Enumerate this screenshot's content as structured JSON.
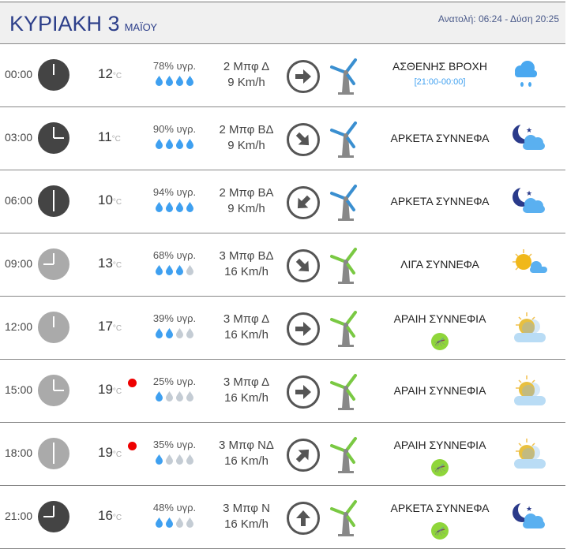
{
  "header": {
    "day": "ΚΥΡΙΑΚΗ 3",
    "month": "ΜΑΪΟΥ",
    "sun": "Ανατολή: 06:24  - Δύση 20:25"
  },
  "colors": {
    "night_clock": "#444444",
    "day_clock": "#aaaaaa",
    "drop_on": "#3fa0f0",
    "drop_off": "#c4ccd4",
    "turbine_weak": "#3a8fd0",
    "turbine_med": "#7ac943",
    "alert": "#ee0000"
  },
  "rows": [
    {
      "time": "00:00",
      "hour": 0,
      "night": true,
      "temp": "12",
      "unit": "°C",
      "alert": false,
      "humidity": "78% υγρ.",
      "drops": 4,
      "beaufort": "2 Μπφ Δ",
      "speed": "9 Km/h",
      "arrow_deg": 90,
      "desc": "ΑΣΘΕΝΗΣ ΒΡΟΧΗ",
      "range": "[21:00-00:00]",
      "mosquito": false,
      "icon": "rain-cloud-icon"
    },
    {
      "time": "03:00",
      "hour": 3,
      "night": true,
      "temp": "11",
      "unit": "°C",
      "alert": false,
      "humidity": "90% υγρ.",
      "drops": 4,
      "beaufort": "2 Μπφ ΒΔ",
      "speed": "9 Km/h",
      "arrow_deg": 135,
      "desc": "ΑΡΚΕΤΑ ΣΥΝΝΕΦΑ",
      "mosquito": false,
      "icon": "moon-cloud-icon"
    },
    {
      "time": "06:00",
      "hour": 6,
      "night": true,
      "temp": "10",
      "unit": "°C",
      "alert": false,
      "humidity": "94% υγρ.",
      "drops": 4,
      "beaufort": "2 Μπφ ΒΑ",
      "speed": "9 Km/h",
      "arrow_deg": 225,
      "desc": "ΑΡΚΕΤΑ ΣΥΝΝΕΦΑ",
      "mosquito": false,
      "icon": "moon-cloud-icon"
    },
    {
      "time": "09:00",
      "hour": 9,
      "night": false,
      "temp": "13",
      "unit": "°C",
      "alert": false,
      "humidity": "68% υγρ.",
      "drops": 3,
      "beaufort": "3 Μπφ ΒΔ",
      "speed": "16 Km/h",
      "arrow_deg": 135,
      "desc": "ΛΙΓΑ ΣΥΝΝΕΦΑ",
      "mosquito": false,
      "icon": "sun-cloud-icon"
    },
    {
      "time": "12:00",
      "hour": 0,
      "night": false,
      "temp": "17",
      "unit": "°C",
      "alert": false,
      "humidity": "39% υγρ.",
      "drops": 2,
      "beaufort": "3 Μπφ Δ",
      "speed": "16 Km/h",
      "arrow_deg": 90,
      "desc": "ΑΡΑΙΗ ΣΥΝΝΕΦΙΑ",
      "mosquito": true,
      "icon": "hazy-sun-cloud-icon"
    },
    {
      "time": "15:00",
      "hour": 3,
      "night": false,
      "temp": "19",
      "unit": "°C",
      "alert": true,
      "humidity": "25% υγρ.",
      "drops": 1,
      "beaufort": "3 Μπφ Δ",
      "speed": "16 Km/h",
      "arrow_deg": 90,
      "desc": "ΑΡΑΙΗ ΣΥΝΝΕΦΙΑ",
      "mosquito": false,
      "icon": "hazy-sun-cloud-icon"
    },
    {
      "time": "18:00",
      "hour": 6,
      "night": false,
      "temp": "19",
      "unit": "°C",
      "alert": true,
      "humidity": "35% υγρ.",
      "drops": 1,
      "beaufort": "3 Μπφ ΝΔ",
      "speed": "16 Km/h",
      "arrow_deg": 45,
      "desc": "ΑΡΑΙΗ ΣΥΝΝΕΦΙΑ",
      "mosquito": true,
      "icon": "hazy-sun-cloud-icon"
    },
    {
      "time": "21:00",
      "hour": 9,
      "night": true,
      "temp": "16",
      "unit": "°C",
      "alert": false,
      "humidity": "48% υγρ.",
      "drops": 2,
      "beaufort": "3 Μπφ Ν",
      "speed": "16 Km/h",
      "arrow_deg": 0,
      "desc": "ΑΡΚΕΤΑ ΣΥΝΝΕΦΑ",
      "mosquito": true,
      "icon": "moon-cloud-icon"
    }
  ]
}
